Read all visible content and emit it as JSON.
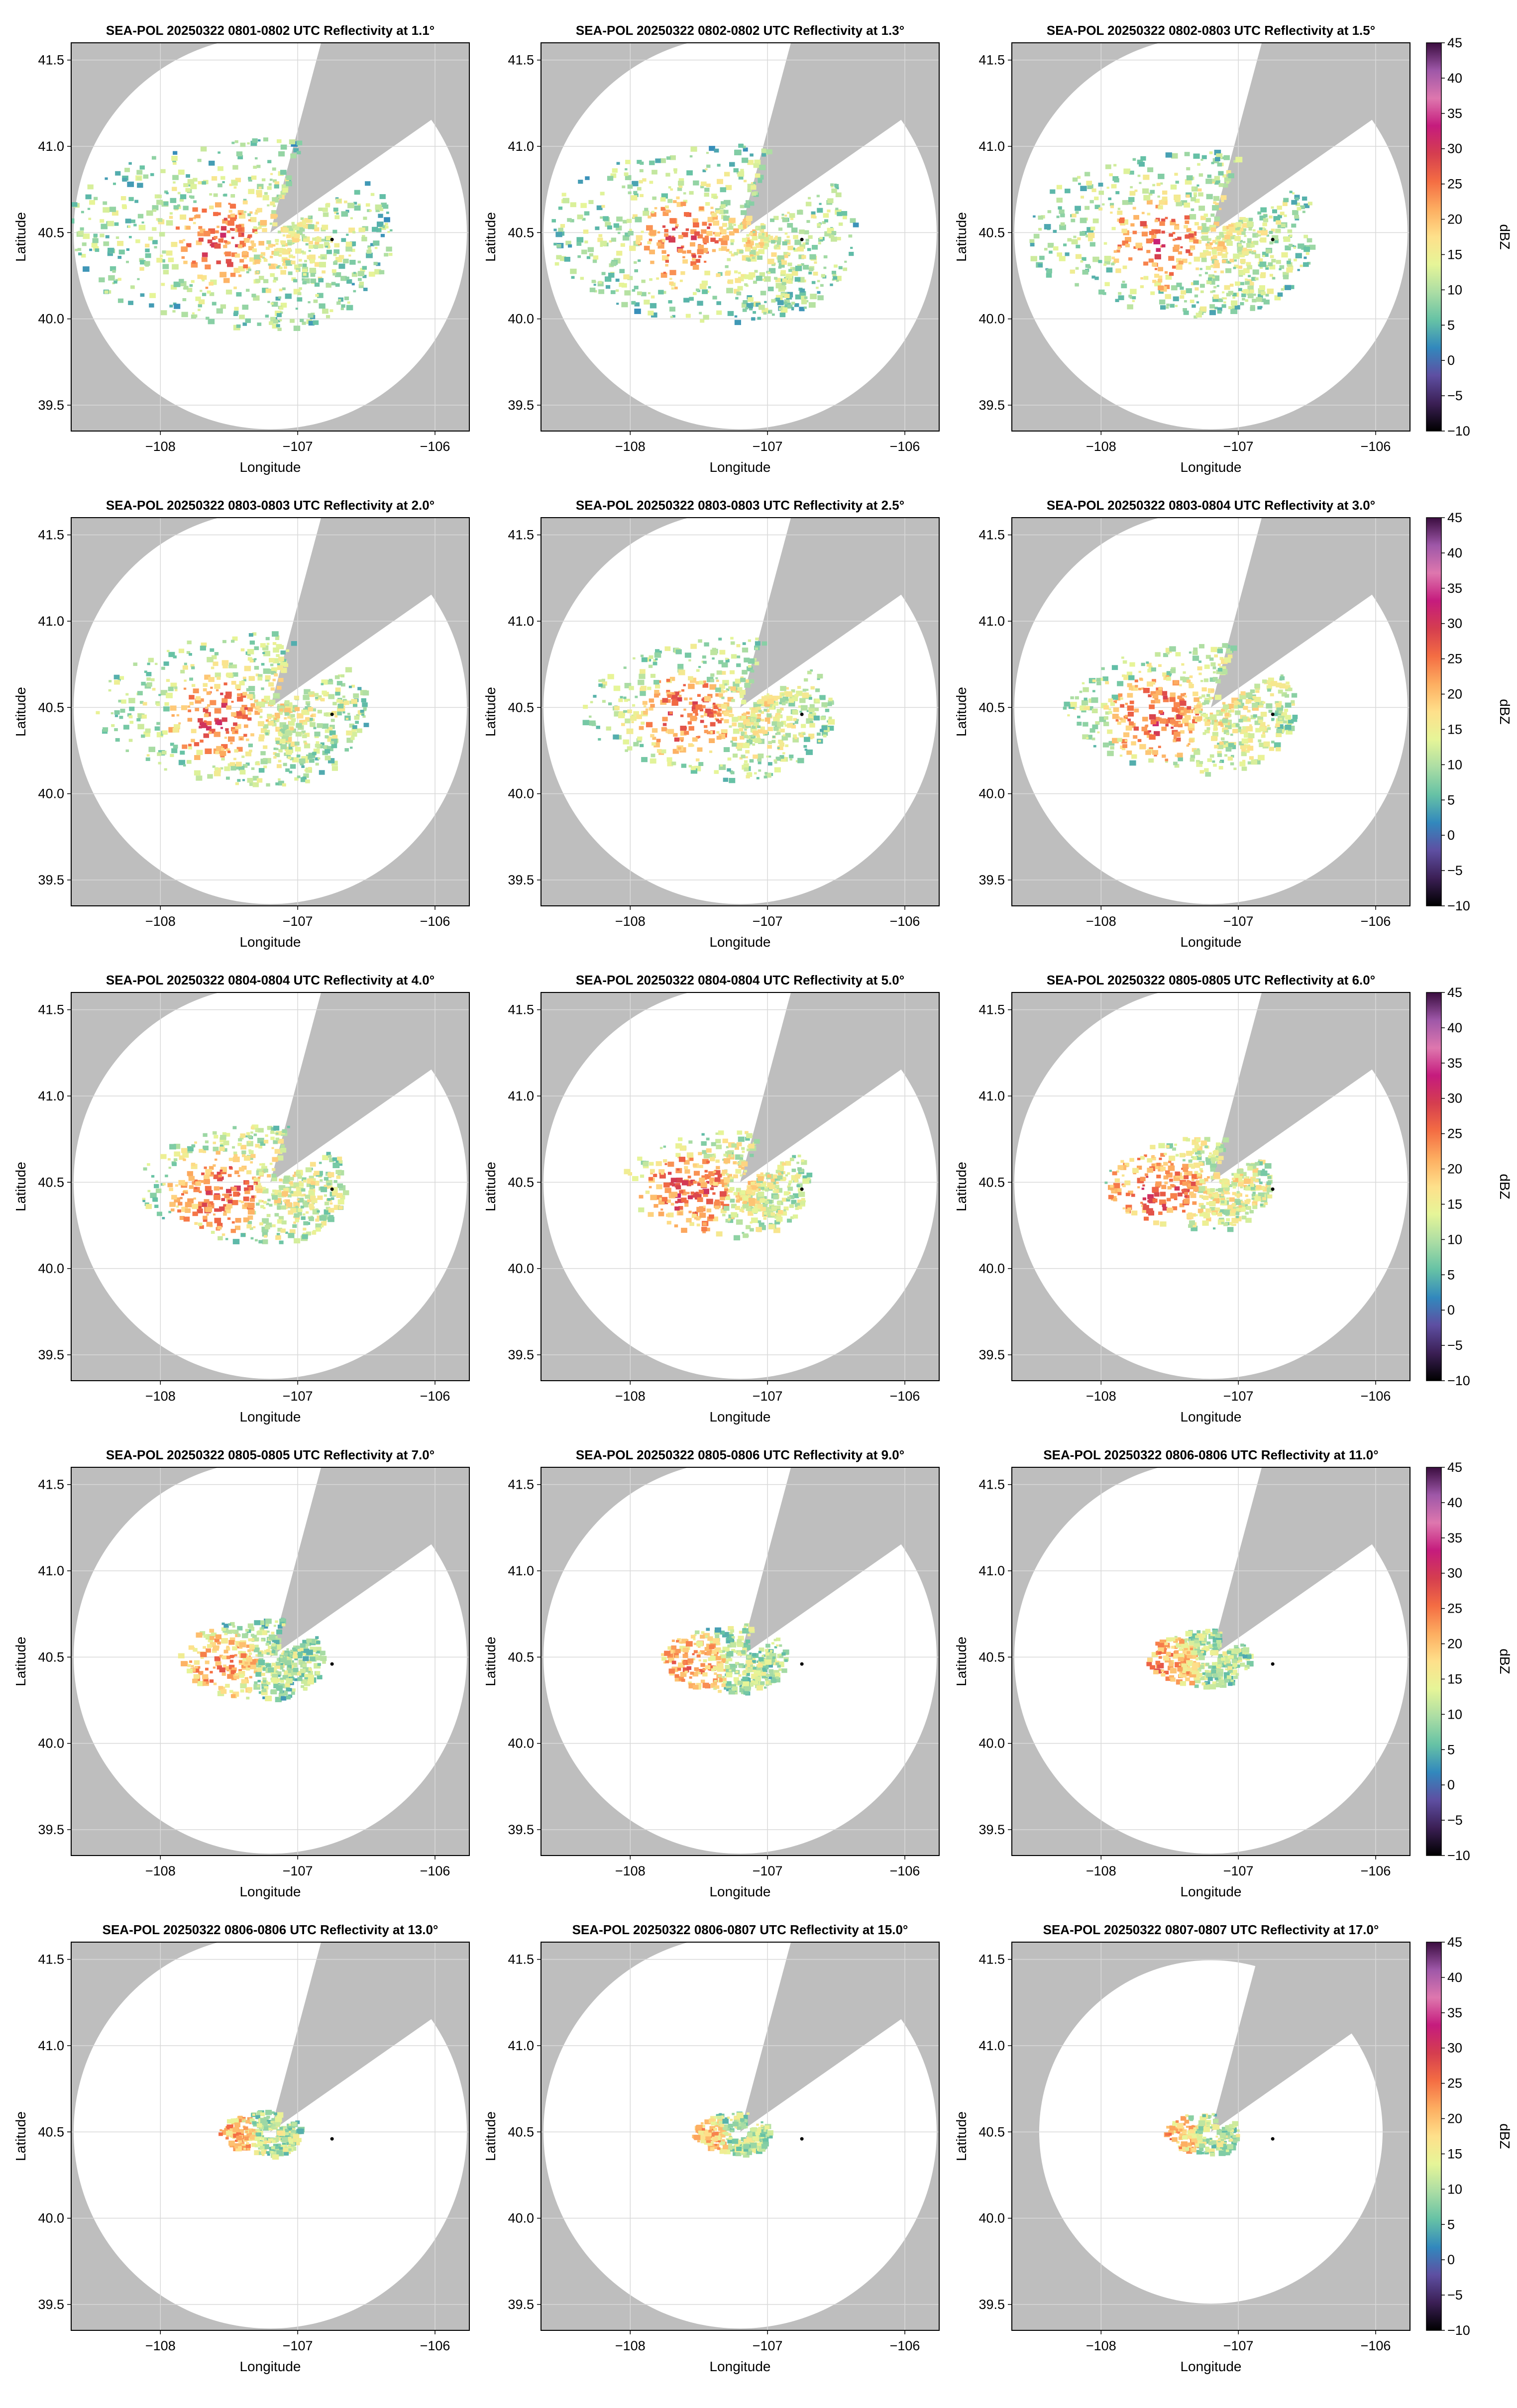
{
  "figure": {
    "radar_name": "SEA-POL",
    "date": "20250322",
    "product": "Reflectivity",
    "colors": {
      "background_mask": "#bebebe",
      "frame": "#000000",
      "grid": "#d9d9d9",
      "echo_weak": "#4a7fbf",
      "echo_moderate": "#90cc8e",
      "echo_strong": "#fadc7a",
      "echo_heavy": "#e34a33"
    }
  },
  "chart_data": {
    "type": "heatmap",
    "panels": [
      {
        "title": "SEA-POL 20250322 0801-0802 UTC Reflectivity at 1.1°",
        "elevation_deg": 1.1
      },
      {
        "title": "SEA-POL 20250322 0802-0802 UTC Reflectivity at 1.3°",
        "elevation_deg": 1.3
      },
      {
        "title": "SEA-POL 20250322 0802-0803 UTC Reflectivity at 1.5°",
        "elevation_deg": 1.5
      },
      {
        "title": "SEA-POL 20250322 0803-0803 UTC Reflectivity at 2.0°",
        "elevation_deg": 2.0
      },
      {
        "title": "SEA-POL 20250322 0803-0803 UTC Reflectivity at 2.5°",
        "elevation_deg": 2.5
      },
      {
        "title": "SEA-POL 20250322 0803-0804 UTC Reflectivity at 3.0°",
        "elevation_deg": 3.0
      },
      {
        "title": "SEA-POL 20250322 0804-0804 UTC Reflectivity at 4.0°",
        "elevation_deg": 4.0
      },
      {
        "title": "SEA-POL 20250322 0804-0804 UTC Reflectivity at 5.0°",
        "elevation_deg": 5.0
      },
      {
        "title": "SEA-POL 20250322 0805-0805 UTC Reflectivity at 6.0°",
        "elevation_deg": 6.0
      },
      {
        "title": "SEA-POL 20250322 0805-0805 UTC Reflectivity at 7.0°",
        "elevation_deg": 7.0
      },
      {
        "title": "SEA-POL 20250322 0805-0806 UTC Reflectivity at 9.0°",
        "elevation_deg": 9.0
      },
      {
        "title": "SEA-POL 20250322 0806-0806 UTC Reflectivity at 11.0°",
        "elevation_deg": 11.0
      },
      {
        "title": "SEA-POL 20250322 0806-0806 UTC Reflectivity at 13.0°",
        "elevation_deg": 13.0
      },
      {
        "title": "SEA-POL 20250322 0806-0807 UTC Reflectivity at 15.0°",
        "elevation_deg": 15.0
      },
      {
        "title": "SEA-POL 20250322 0807-0807 UTC Reflectivity at 17.0°",
        "elevation_deg": 17.0
      }
    ],
    "xlabel": "Longitude",
    "ylabel": "Latitude",
    "xlim": [
      -108.65,
      -105.75
    ],
    "ylim": [
      39.35,
      41.6
    ],
    "xticks": [
      -108,
      -107,
      -106
    ],
    "xtick_labels": [
      "−108",
      "−107",
      "−106"
    ],
    "yticks": [
      39.5,
      40.0,
      40.5,
      41.0,
      41.5
    ],
    "ytick_labels": [
      "39.5",
      "40.0",
      "40.5",
      "41.0",
      "41.5"
    ],
    "radar_location": {
      "lon": -107.2,
      "lat": 40.5
    },
    "marker_location": {
      "lon": -106.75,
      "lat": 40.46
    },
    "blocked_sector_bearing_deg": [
      15,
      55
    ],
    "grid": true,
    "colorbar": {
      "label": "dBZ",
      "min": -10,
      "max": 45,
      "ticks": [
        -10,
        -5,
        0,
        5,
        10,
        15,
        20,
        25,
        30,
        35,
        40,
        45
      ],
      "tick_labels": [
        "−10",
        "−5",
        "0",
        "5",
        "10",
        "15",
        "20",
        "25",
        "30",
        "35",
        "40",
        "45"
      ],
      "colormap_stops": [
        "#000000",
        "#3b1f55",
        "#5e4fa2",
        "#3288bd",
        "#66c2a5",
        "#abdda4",
        "#e6f598",
        "#fee08b",
        "#fdae61",
        "#f46d43",
        "#d53e4f",
        "#c51b7d",
        "#de77ae",
        "#9e57a8",
        "#3a0d3f"
      ]
    }
  }
}
